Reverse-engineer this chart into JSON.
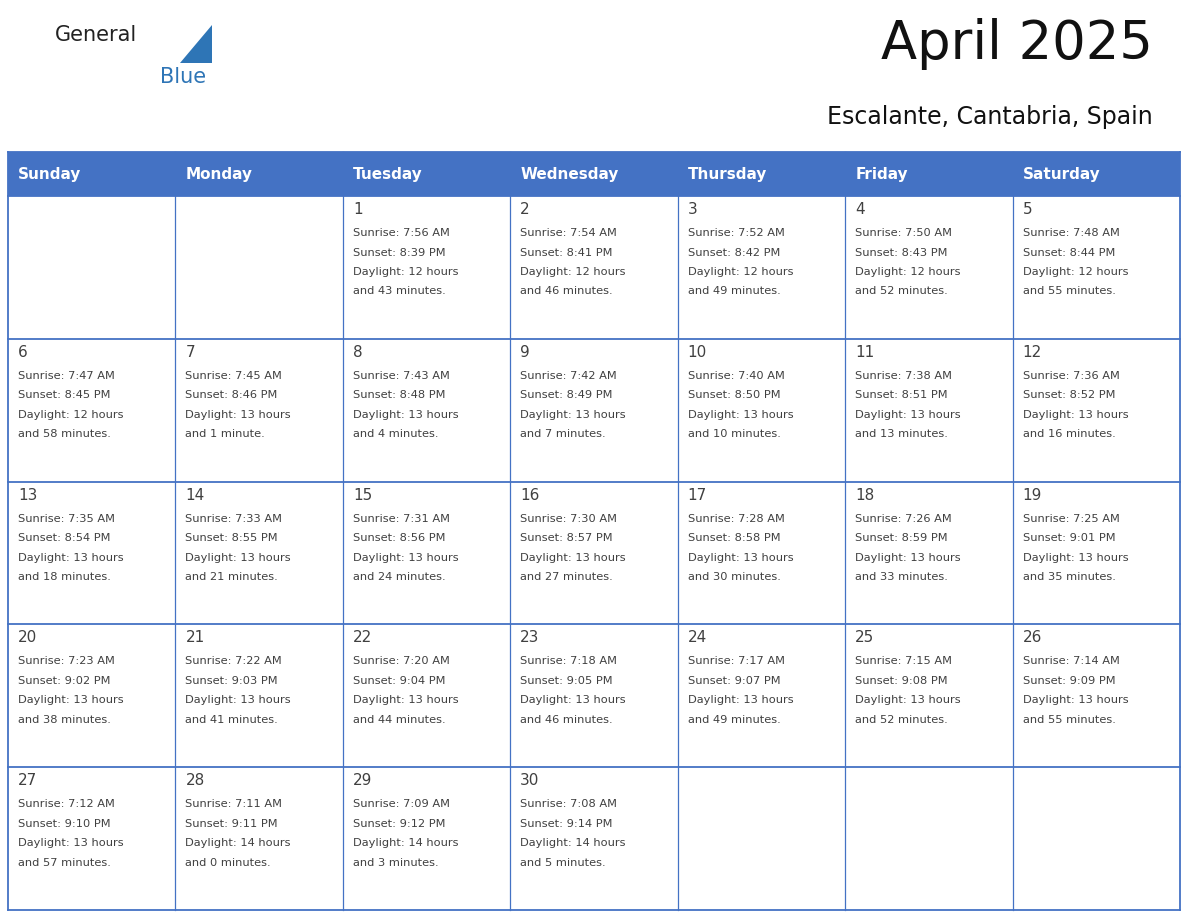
{
  "title": "April 2025",
  "subtitle": "Escalante, Cantabria, Spain",
  "header_bg_color": "#4472C4",
  "header_text_color": "#FFFFFF",
  "cell_bg_color": "#FFFFFF",
  "border_color": "#4472C4",
  "text_color": "#404040",
  "days_of_week": [
    "Sunday",
    "Monday",
    "Tuesday",
    "Wednesday",
    "Thursday",
    "Friday",
    "Saturday"
  ],
  "calendar_data": [
    [
      {
        "day": "",
        "info": ""
      },
      {
        "day": "",
        "info": ""
      },
      {
        "day": "1",
        "info": "Sunrise: 7:56 AM\nSunset: 8:39 PM\nDaylight: 12 hours\nand 43 minutes."
      },
      {
        "day": "2",
        "info": "Sunrise: 7:54 AM\nSunset: 8:41 PM\nDaylight: 12 hours\nand 46 minutes."
      },
      {
        "day": "3",
        "info": "Sunrise: 7:52 AM\nSunset: 8:42 PM\nDaylight: 12 hours\nand 49 minutes."
      },
      {
        "day": "4",
        "info": "Sunrise: 7:50 AM\nSunset: 8:43 PM\nDaylight: 12 hours\nand 52 minutes."
      },
      {
        "day": "5",
        "info": "Sunrise: 7:48 AM\nSunset: 8:44 PM\nDaylight: 12 hours\nand 55 minutes."
      }
    ],
    [
      {
        "day": "6",
        "info": "Sunrise: 7:47 AM\nSunset: 8:45 PM\nDaylight: 12 hours\nand 58 minutes."
      },
      {
        "day": "7",
        "info": "Sunrise: 7:45 AM\nSunset: 8:46 PM\nDaylight: 13 hours\nand 1 minute."
      },
      {
        "day": "8",
        "info": "Sunrise: 7:43 AM\nSunset: 8:48 PM\nDaylight: 13 hours\nand 4 minutes."
      },
      {
        "day": "9",
        "info": "Sunrise: 7:42 AM\nSunset: 8:49 PM\nDaylight: 13 hours\nand 7 minutes."
      },
      {
        "day": "10",
        "info": "Sunrise: 7:40 AM\nSunset: 8:50 PM\nDaylight: 13 hours\nand 10 minutes."
      },
      {
        "day": "11",
        "info": "Sunrise: 7:38 AM\nSunset: 8:51 PM\nDaylight: 13 hours\nand 13 minutes."
      },
      {
        "day": "12",
        "info": "Sunrise: 7:36 AM\nSunset: 8:52 PM\nDaylight: 13 hours\nand 16 minutes."
      }
    ],
    [
      {
        "day": "13",
        "info": "Sunrise: 7:35 AM\nSunset: 8:54 PM\nDaylight: 13 hours\nand 18 minutes."
      },
      {
        "day": "14",
        "info": "Sunrise: 7:33 AM\nSunset: 8:55 PM\nDaylight: 13 hours\nand 21 minutes."
      },
      {
        "day": "15",
        "info": "Sunrise: 7:31 AM\nSunset: 8:56 PM\nDaylight: 13 hours\nand 24 minutes."
      },
      {
        "day": "16",
        "info": "Sunrise: 7:30 AM\nSunset: 8:57 PM\nDaylight: 13 hours\nand 27 minutes."
      },
      {
        "day": "17",
        "info": "Sunrise: 7:28 AM\nSunset: 8:58 PM\nDaylight: 13 hours\nand 30 minutes."
      },
      {
        "day": "18",
        "info": "Sunrise: 7:26 AM\nSunset: 8:59 PM\nDaylight: 13 hours\nand 33 minutes."
      },
      {
        "day": "19",
        "info": "Sunrise: 7:25 AM\nSunset: 9:01 PM\nDaylight: 13 hours\nand 35 minutes."
      }
    ],
    [
      {
        "day": "20",
        "info": "Sunrise: 7:23 AM\nSunset: 9:02 PM\nDaylight: 13 hours\nand 38 minutes."
      },
      {
        "day": "21",
        "info": "Sunrise: 7:22 AM\nSunset: 9:03 PM\nDaylight: 13 hours\nand 41 minutes."
      },
      {
        "day": "22",
        "info": "Sunrise: 7:20 AM\nSunset: 9:04 PM\nDaylight: 13 hours\nand 44 minutes."
      },
      {
        "day": "23",
        "info": "Sunrise: 7:18 AM\nSunset: 9:05 PM\nDaylight: 13 hours\nand 46 minutes."
      },
      {
        "day": "24",
        "info": "Sunrise: 7:17 AM\nSunset: 9:07 PM\nDaylight: 13 hours\nand 49 minutes."
      },
      {
        "day": "25",
        "info": "Sunrise: 7:15 AM\nSunset: 9:08 PM\nDaylight: 13 hours\nand 52 minutes."
      },
      {
        "day": "26",
        "info": "Sunrise: 7:14 AM\nSunset: 9:09 PM\nDaylight: 13 hours\nand 55 minutes."
      }
    ],
    [
      {
        "day": "27",
        "info": "Sunrise: 7:12 AM\nSunset: 9:10 PM\nDaylight: 13 hours\nand 57 minutes."
      },
      {
        "day": "28",
        "info": "Sunrise: 7:11 AM\nSunset: 9:11 PM\nDaylight: 14 hours\nand 0 minutes."
      },
      {
        "day": "29",
        "info": "Sunrise: 7:09 AM\nSunset: 9:12 PM\nDaylight: 14 hours\nand 3 minutes."
      },
      {
        "day": "30",
        "info": "Sunrise: 7:08 AM\nSunset: 9:14 PM\nDaylight: 14 hours\nand 5 minutes."
      },
      {
        "day": "",
        "info": ""
      },
      {
        "day": "",
        "info": ""
      },
      {
        "day": "",
        "info": ""
      }
    ]
  ],
  "logo_text_general": "General",
  "logo_text_blue": "Blue",
  "logo_triangle_color": "#2E75B6",
  "title_fontsize": 38,
  "subtitle_fontsize": 17,
  "day_name_fontsize": 11,
  "day_num_fontsize": 11,
  "info_fontsize": 8.2
}
